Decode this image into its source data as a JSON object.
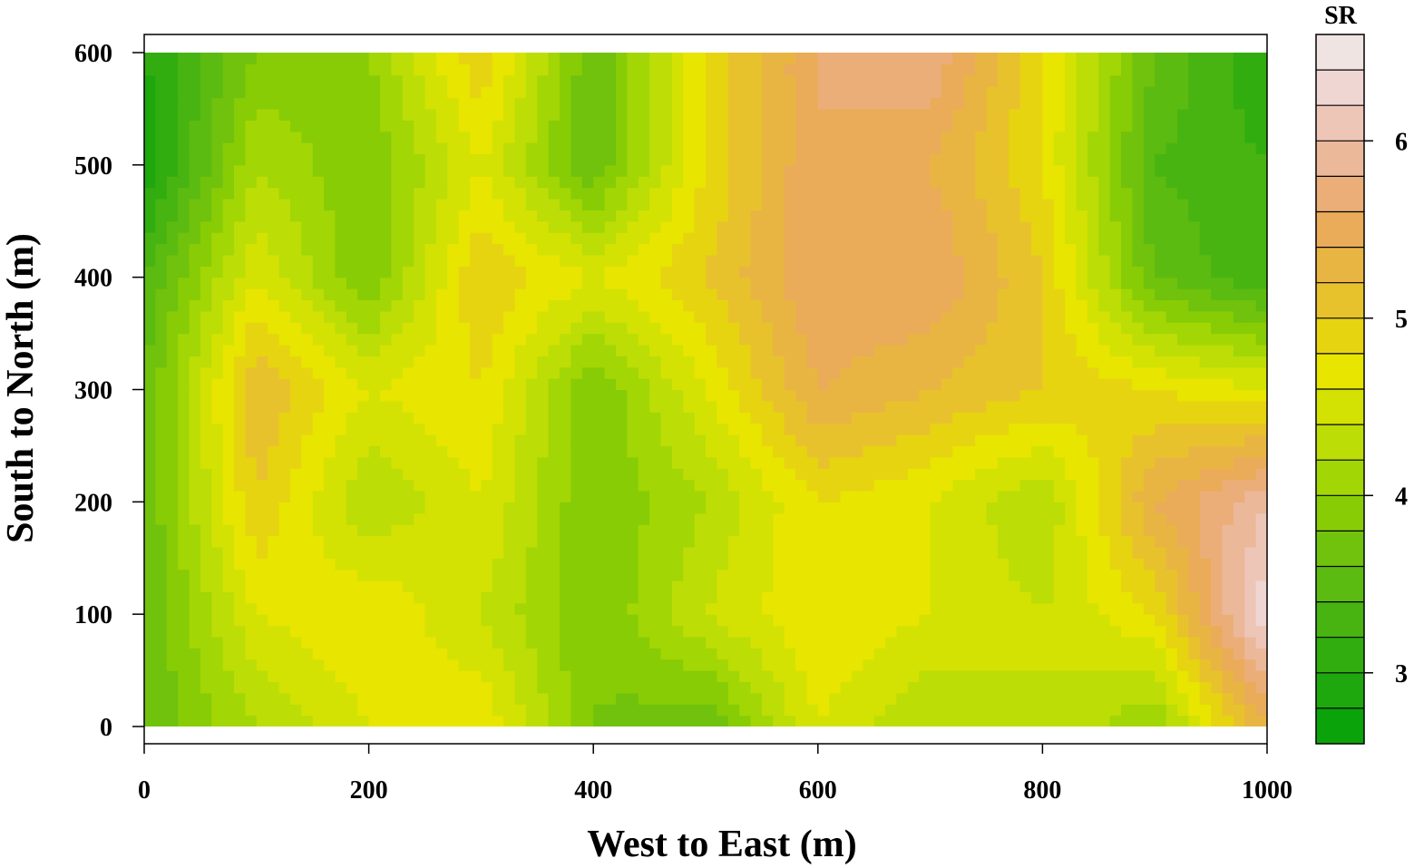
{
  "chart_data": {
    "type": "heatmap",
    "subtype": "filled-contour",
    "xlabel": "West to East (m)",
    "ylabel": "South to North (m)",
    "xlim": [
      0,
      1000
    ],
    "ylim": [
      0,
      600
    ],
    "x_ticks": [
      0,
      200,
      400,
      600,
      800,
      1000
    ],
    "y_ticks": [
      0,
      100,
      200,
      300,
      400,
      500,
      600
    ],
    "colorbar": {
      "title": "SR",
      "range": [
        2.6,
        6.6
      ],
      "ticks": [
        3,
        4,
        5,
        6
      ],
      "levels": [
        2.6,
        2.8,
        3.0,
        3.2,
        3.4,
        3.6,
        3.8,
        4.0,
        4.2,
        4.4,
        4.6,
        4.8,
        5.0,
        5.2,
        5.4,
        5.6,
        5.8,
        6.0,
        6.2,
        6.4,
        6.6
      ],
      "colors": [
        "#0aa30a",
        "#1ea80e",
        "#32ad10",
        "#48b412",
        "#5cbb10",
        "#70c20c",
        "#88cc06",
        "#a2d604",
        "#bcdd06",
        "#d3e203",
        "#e8e500",
        "#e7d410",
        "#e8c22c",
        "#e9b542",
        "#eaac58",
        "#ebae78",
        "#ecb89a",
        "#edc6b8",
        "#efd6d2",
        "#f0e4e3",
        "#f0f0f0"
      ]
    },
    "grid_x": [
      0,
      100,
      200,
      300,
      400,
      500,
      600,
      700,
      800,
      900,
      1000
    ],
    "grid_y": [
      0,
      100,
      200,
      300,
      400,
      500,
      600
    ],
    "values": [
      [
        3.6,
        4.2,
        4.6,
        4.8,
        3.8,
        3.6,
        4.6,
        4.2,
        4.4,
        4.0,
        5.4
      ],
      [
        3.6,
        4.6,
        4.8,
        4.4,
        3.8,
        4.4,
        4.8,
        4.6,
        4.4,
        4.8,
        6.4
      ],
      [
        3.6,
        5.0,
        4.2,
        4.6,
        3.8,
        4.2,
        4.8,
        4.6,
        4.2,
        5.4,
        6.0
      ],
      [
        3.6,
        5.2,
        4.6,
        4.8,
        3.8,
        4.6,
        5.4,
        5.2,
        5.0,
        4.8,
        4.6
      ],
      [
        3.4,
        4.6,
        3.8,
        5.0,
        4.6,
        5.0,
        5.6,
        5.6,
        5.0,
        3.6,
        3.2
      ],
      [
        2.8,
        4.2,
        3.8,
        4.6,
        3.6,
        4.8,
        5.6,
        5.4,
        4.8,
        3.4,
        3.2
      ],
      [
        3.0,
        3.8,
        4.0,
        5.0,
        3.6,
        4.8,
        5.6,
        5.8,
        4.8,
        3.6,
        3.0
      ]
    ]
  }
}
